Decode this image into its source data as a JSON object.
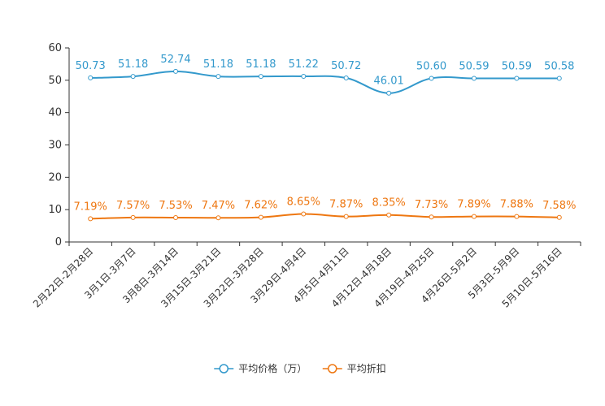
{
  "chart_data": {
    "type": "line",
    "title": "",
    "xlabel": "",
    "ylabel": "",
    "ylim": [
      0,
      60
    ],
    "yticks": [
      0,
      10,
      20,
      30,
      40,
      50,
      60
    ],
    "categories": [
      "2月22日-2月28日",
      "3月1日-3月7日",
      "3月8日-3月14日",
      "3月15日-3月21日",
      "3月22日-3月28日",
      "3月29日-4月4日",
      "4月5日-4月11日",
      "4月12日-4月18日",
      "4月19日-4月25日",
      "4月26日-5月2日",
      "5月3日-5月9日",
      "5月10日-5月16日"
    ],
    "series": [
      {
        "name": "平均价格（万）",
        "color": "#3399cc",
        "values": [
          50.73,
          51.18,
          52.74,
          51.18,
          51.18,
          51.22,
          50.72,
          46.01,
          50.6,
          50.59,
          50.59,
          50.58
        ],
        "labels": [
          "50.73",
          "51.18",
          "52.74",
          "51.18",
          "51.18",
          "51.22",
          "50.72",
          "46.01",
          "50.60",
          "50.59",
          "50.59",
          "50.58"
        ]
      },
      {
        "name": "平均折扣",
        "color": "#ee7711",
        "values": [
          7.19,
          7.57,
          7.53,
          7.47,
          7.62,
          8.65,
          7.87,
          8.35,
          7.73,
          7.89,
          7.88,
          7.58
        ],
        "labels": [
          "7.19%",
          "7.57%",
          "7.53%",
          "7.47%",
          "7.62%",
          "8.65%",
          "7.87%",
          "8.35%",
          "7.73%",
          "7.89%",
          "7.88%",
          "7.58%"
        ]
      }
    ],
    "grid": false,
    "legend_position": "bottom-center"
  }
}
